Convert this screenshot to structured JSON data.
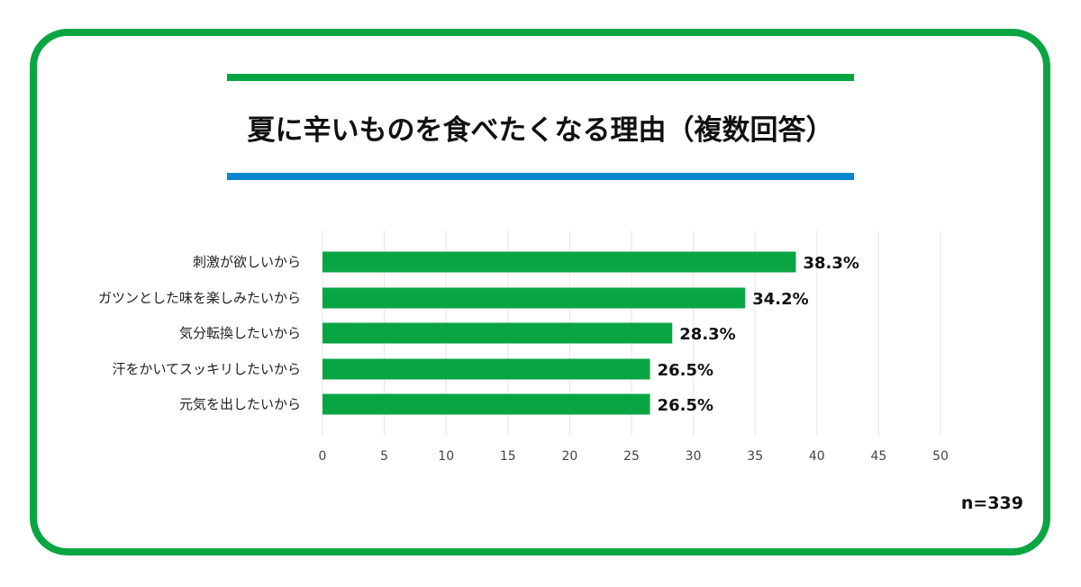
{
  "title": "夏に辛いものを食べたくなる理由（複数回答）",
  "sample_size": "n=339",
  "colors": {
    "frame": "#0aa543",
    "rule_top": "#0aa543",
    "rule_bottom": "#0a86d1",
    "bar": "#0aa543",
    "grid": "#e9e9e9"
  },
  "chart_data": {
    "type": "bar",
    "orientation": "horizontal",
    "title": "夏に辛いものを食べたくなる理由（複数回答）",
    "categories": [
      "刺激が欲しいから",
      "ガツンとした味を楽しみたいから",
      "気分転換したいから",
      "汗をかいてスッキリしたいから",
      "元気を出したいから"
    ],
    "values": [
      38.3,
      34.2,
      28.3,
      26.5,
      26.5
    ],
    "value_labels": [
      "38.3%",
      "34.2%",
      "28.3%",
      "26.5%",
      "26.5%"
    ],
    "xlim": [
      0,
      50
    ],
    "xticks": [
      "0",
      "5",
      "10",
      "15",
      "20",
      "25",
      "30",
      "35",
      "40",
      "45",
      "50"
    ],
    "grid": true,
    "legend": "none"
  }
}
